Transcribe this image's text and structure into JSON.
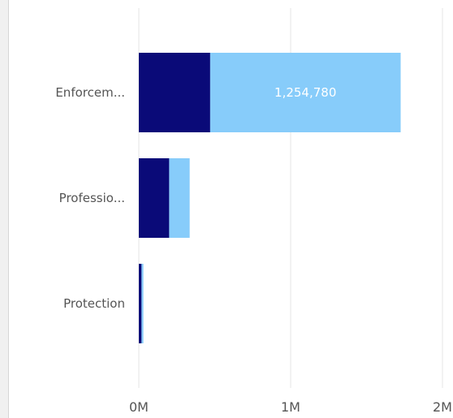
{
  "chart_data": {
    "type": "bar",
    "orientation": "horizontal",
    "stacked": true,
    "categories": [
      "Enforcem...",
      "Professio...",
      "Protection"
    ],
    "series": [
      {
        "values": [
          470000,
          200000,
          18000
        ],
        "color": "#0a0a78"
      },
      {
        "values": [
          1254780,
          135000,
          12000
        ],
        "color": "#87ccfa"
      }
    ],
    "data_labels": [
      {
        "category_index": 0,
        "series_index": 1,
        "text": "1,254,780"
      }
    ],
    "x_ticks": [
      {
        "value": 0,
        "label": "0M"
      },
      {
        "value": 1000000,
        "label": "1M"
      },
      {
        "value": 2000000,
        "label": "2M"
      }
    ],
    "xlim": [
      0,
      2000000
    ],
    "grid": true,
    "title": "",
    "xlabel": "",
    "ylabel": ""
  }
}
